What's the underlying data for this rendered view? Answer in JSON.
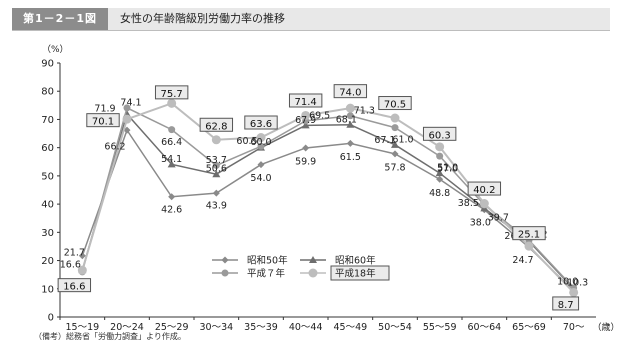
{
  "figure": {
    "number": "第1－2－1図",
    "title": "女性の年齢階級別労働力率の推移"
  },
  "note": "（備考）総務省「労働力調査」より作成。",
  "chart_data": {
    "type": "line",
    "ylabel": "（%）",
    "xlabel": "（歳）",
    "ylim": [
      0,
      90
    ],
    "yticks": [
      0,
      10,
      20,
      30,
      40,
      50,
      60,
      70,
      80,
      90
    ],
    "grid": false,
    "legend_position": "bottom-center",
    "categories": [
      "15～19",
      "20～24",
      "25～29",
      "30～34",
      "35～39",
      "40～44",
      "45～49",
      "50～54",
      "55～59",
      "60～64",
      "65～69",
      "70～"
    ],
    "series": [
      {
        "name": "昭和50年",
        "marker": "diamond",
        "color": "#8a8a8a",
        "values": [
          21.7,
          66.2,
          42.6,
          43.9,
          54.0,
          59.9,
          61.5,
          57.8,
          48.8,
          38.0,
          24.7,
          9.3
        ]
      },
      {
        "name": "昭和60年",
        "marker": "triangle",
        "color": "#6e6e6e",
        "values": [
          16.6,
          71.9,
          54.1,
          50.6,
          60.0,
          67.9,
          68.1,
          61.0,
          51.0,
          38.5,
          26.8,
          10.0
        ]
      },
      {
        "name": "平成７年",
        "marker": "circle",
        "color": "#9a9a9a",
        "values": [
          16.0,
          74.1,
          66.4,
          53.7,
          60.5,
          69.5,
          71.3,
          67.1,
          57.0,
          39.7,
          27.2,
          10.3
        ]
      },
      {
        "name": "平成18年",
        "marker": "circle-large",
        "color": "#bdbdbd",
        "boxed": true,
        "values": [
          16.6,
          70.1,
          75.7,
          62.8,
          63.6,
          71.4,
          74.0,
          70.5,
          60.3,
          40.2,
          25.1,
          8.7
        ]
      }
    ]
  }
}
